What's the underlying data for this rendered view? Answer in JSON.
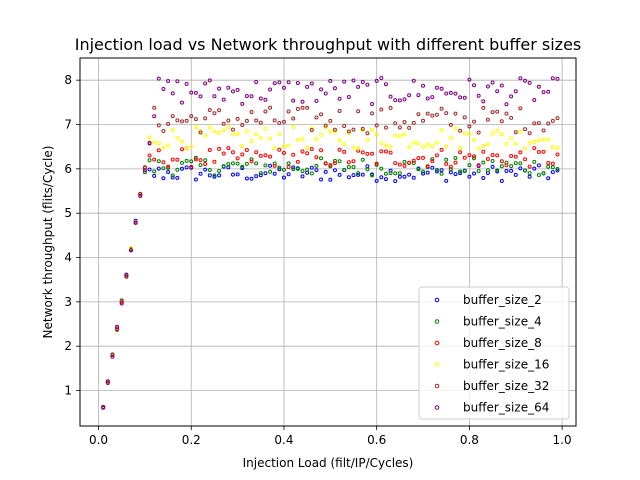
{
  "chart_data": {
    "type": "scatter",
    "title": "Injection load vs Network throughput with different buffer sizes",
    "xlabel": "Injection Load (filt/IP/Cycles)",
    "ylabel": "Network throughput (flits/Cycle)",
    "xlim": [
      -0.04,
      1.03
    ],
    "ylim": [
      0.2,
      8.5
    ],
    "xticks": [
      0.0,
      0.2,
      0.4,
      0.6,
      0.8,
      1.0
    ],
    "xtick_labels": [
      "0.0",
      "0.2",
      "0.4",
      "0.6",
      "0.8",
      "1.0"
    ],
    "yticks": [
      1,
      2,
      3,
      4,
      5,
      6,
      7,
      8
    ],
    "ytick_labels": [
      "1",
      "2",
      "3",
      "4",
      "5",
      "6",
      "7",
      "8"
    ],
    "grid": true,
    "legend_position": "bottom-right",
    "marker": "hollow-circle",
    "series": [
      {
        "name": "buffer_size_2",
        "color": "#0000ff",
        "plateau": 5.9,
        "spread": 0.18
      },
      {
        "name": "buffer_size_4",
        "color": "#008000",
        "plateau": 6.05,
        "spread": 0.2
      },
      {
        "name": "buffer_size_8",
        "color": "#ff0000",
        "plateau": 6.25,
        "spread": 0.22
      },
      {
        "name": "buffer_size_16",
        "color": "#ffff00",
        "plateau": 6.7,
        "spread": 0.25
      },
      {
        "name": "buffer_size_32",
        "color": "#a52a2a",
        "plateau": 7.1,
        "spread": 0.3
      },
      {
        "name": "buffer_size_64",
        "color": "#800080",
        "plateau": 7.75,
        "spread": 0.3
      }
    ],
    "x_start": 0.01,
    "x_step": 0.01,
    "x_end": 0.99
  }
}
